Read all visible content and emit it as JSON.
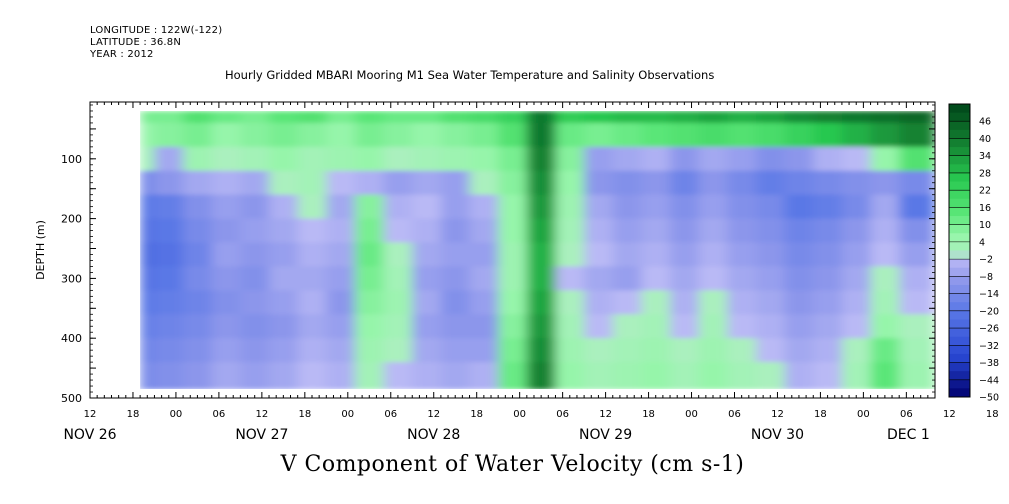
{
  "header": {
    "longitude": "LONGITUDE : 122W(-122)",
    "latitude": "LATITUDE : 36.8N",
    "year": "YEAR : 2012"
  },
  "chart_data": {
    "type": "heatmap",
    "title": "Hourly Gridded MBARI Mooring M1 Sea Water Temperature and Salinity Observations",
    "subtitle": "V Component of Water Velocity (cm s-1)",
    "ylabel": "DEPTH (m)",
    "xlabel": "",
    "x_start": "2012-11-26T12:00",
    "x_end": "2012-12-01T10:00",
    "xlim_hours": [
      0,
      118
    ],
    "x_tick_labels": [
      "12",
      "18",
      "00",
      "06",
      "12",
      "18",
      "00",
      "06",
      "12",
      "18",
      "00",
      "06",
      "12",
      "18",
      "00",
      "06",
      "12",
      "18",
      "00",
      "06",
      "12",
      "18",
      "00",
      "06"
    ],
    "x_day_labels": [
      {
        "label": "NOV 26",
        "at_hour": 0
      },
      {
        "label": "NOV 27",
        "at_hour": 24
      },
      {
        "label": "NOV 28",
        "at_hour": 48
      },
      {
        "label": "NOV 29",
        "at_hour": 72
      },
      {
        "label": "NOV 30",
        "at_hour": 96
      },
      {
        "label": "DEC  1",
        "at_hour": 114
      }
    ],
    "y_ticks": [
      100,
      200,
      300,
      400,
      500
    ],
    "ylim": [
      500,
      5
    ],
    "y_inverted": true,
    "colorbar_levels": [
      46,
      40,
      34,
      28,
      22,
      16,
      10,
      4,
      -2,
      -8,
      -14,
      -20,
      -26,
      -32,
      -38,
      -44,
      -50
    ],
    "colorbar_range": [
      -50,
      52
    ],
    "data_extent": {
      "hour_start": 7,
      "hour_end": 118,
      "depth_top": 20,
      "depth_bottom": 485
    },
    "time_columns_hours": [
      7,
      11,
      15,
      19,
      23,
      27,
      31,
      35,
      39,
      43,
      47,
      51,
      55,
      59,
      63,
      67,
      71,
      75,
      79,
      83,
      87,
      91,
      95,
      99,
      103,
      107,
      111,
      115
    ],
    "depth_rows_m": [
      20,
      60,
      100,
      140,
      180,
      220,
      260,
      300,
      340,
      380,
      420,
      460
    ],
    "values": [
      [
        10,
        10,
        16,
        12,
        10,
        14,
        16,
        10,
        14,
        12,
        12,
        16,
        18,
        22,
        40,
        24,
        26,
        28,
        28,
        30,
        32,
        30,
        32,
        36,
        38,
        40,
        42,
        44
      ],
      [
        6,
        8,
        10,
        6,
        8,
        10,
        8,
        6,
        10,
        8,
        6,
        8,
        10,
        16,
        40,
        12,
        10,
        12,
        14,
        16,
        18,
        16,
        18,
        22,
        26,
        30,
        34,
        38
      ],
      [
        2,
        -6,
        4,
        0,
        2,
        6,
        2,
        4,
        6,
        0,
        2,
        4,
        6,
        10,
        38,
        8,
        -8,
        -6,
        -4,
        -10,
        -6,
        -8,
        -12,
        -10,
        -4,
        -2,
        6,
        16
      ],
      [
        -14,
        -10,
        -6,
        -4,
        -6,
        0,
        2,
        -2,
        -4,
        -8,
        -6,
        -8,
        0,
        8,
        36,
        6,
        -10,
        -12,
        -10,
        -16,
        -10,
        -14,
        -18,
        -16,
        -14,
        -12,
        -10,
        -14
      ],
      [
        -20,
        -18,
        -12,
        -8,
        -10,
        -4,
        0,
        -6,
        8,
        -4,
        -2,
        -8,
        -4,
        6,
        34,
        4,
        -6,
        -10,
        -8,
        -12,
        -8,
        -12,
        -14,
        -20,
        -18,
        -14,
        -6,
        -20
      ],
      [
        -22,
        -20,
        -14,
        -10,
        -8,
        -6,
        -2,
        -4,
        10,
        -2,
        -4,
        -10,
        -6,
        6,
        32,
        2,
        -4,
        -8,
        -6,
        -10,
        -6,
        -10,
        -12,
        -16,
        -14,
        -10,
        -4,
        -12
      ],
      [
        -24,
        -22,
        -16,
        -8,
        -10,
        -8,
        -4,
        -6,
        12,
        0,
        -6,
        -8,
        -8,
        4,
        30,
        0,
        -2,
        -6,
        -4,
        -8,
        -4,
        -8,
        -10,
        -14,
        -12,
        -8,
        -2,
        -8
      ],
      [
        -22,
        -20,
        -14,
        -10,
        -12,
        -6,
        -6,
        -8,
        10,
        2,
        -8,
        -10,
        -6,
        4,
        30,
        -2,
        -6,
        -8,
        -2,
        -6,
        -2,
        -6,
        -8,
        -12,
        -10,
        -6,
        0,
        -4
      ],
      [
        -20,
        -18,
        -16,
        -12,
        -10,
        -8,
        -4,
        -10,
        8,
        4,
        -6,
        -12,
        -8,
        6,
        32,
        0,
        -4,
        -2,
        0,
        -4,
        0,
        -4,
        -6,
        -10,
        -8,
        -4,
        2,
        -2
      ],
      [
        -18,
        -16,
        -14,
        -10,
        -12,
        -10,
        -6,
        -8,
        6,
        2,
        -8,
        -10,
        -10,
        8,
        34,
        2,
        -2,
        0,
        2,
        -2,
        2,
        -2,
        -4,
        -8,
        -6,
        -2,
        6,
        0
      ],
      [
        -16,
        -14,
        -12,
        -8,
        -10,
        -8,
        -4,
        -6,
        4,
        0,
        -6,
        -8,
        -8,
        10,
        36,
        4,
        0,
        2,
        4,
        0,
        4,
        0,
        -2,
        -6,
        -4,
        0,
        12,
        2
      ],
      [
        -14,
        -12,
        -10,
        -6,
        -8,
        -6,
        -2,
        -4,
        2,
        -2,
        -4,
        -6,
        -4,
        12,
        38,
        6,
        2,
        4,
        6,
        2,
        6,
        2,
        0,
        -4,
        -2,
        2,
        14,
        4
      ]
    ]
  }
}
